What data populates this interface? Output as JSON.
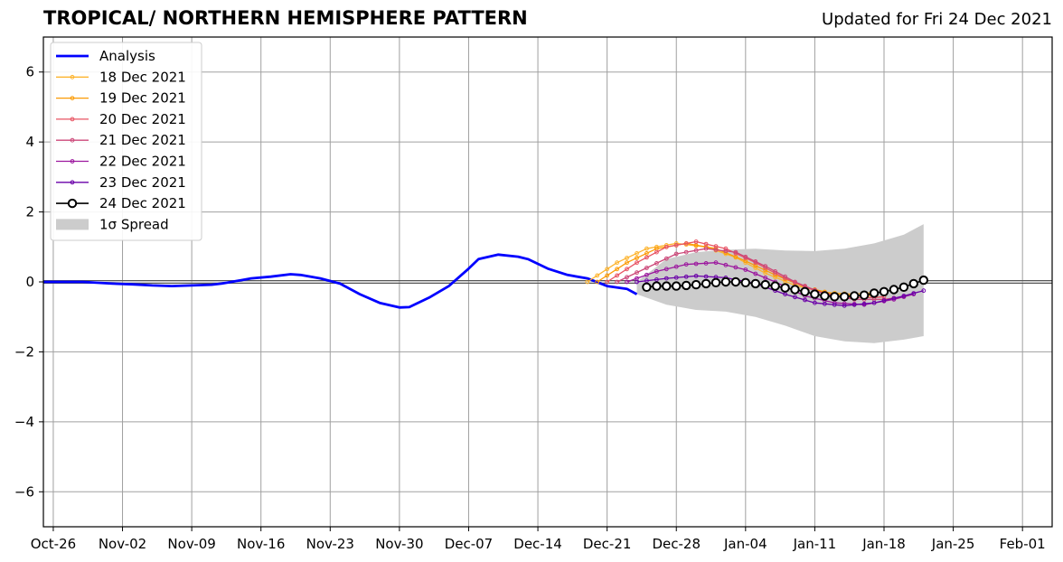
{
  "chart_data": {
    "type": "line",
    "title": "TROPICAL/ NORTHERN HEMISPHERE PATTERN",
    "subtitle": "Updated for Fri 24 Dec 2021",
    "xlabel": "",
    "ylabel": "",
    "x_start": "2021-10-25",
    "x_end": "2022-02-04",
    "ylim": [
      -7,
      7
    ],
    "yticks": [
      -6,
      -4,
      -2,
      0,
      2,
      4,
      6
    ],
    "ytick_labels": [
      "−6",
      "−4",
      "−2",
      "0",
      "2",
      "4",
      "6"
    ],
    "xticks": [
      "2021-10-26",
      "2021-11-02",
      "2021-11-09",
      "2021-11-16",
      "2021-11-23",
      "2021-11-30",
      "2021-12-07",
      "2021-12-14",
      "2021-12-21",
      "2021-12-28",
      "2022-01-04",
      "2022-01-11",
      "2022-01-18",
      "2022-01-25",
      "2022-02-01"
    ],
    "xtick_labels": [
      "Oct-26",
      "Nov-02",
      "Nov-09",
      "Nov-16",
      "Nov-23",
      "Nov-30",
      "Dec-07",
      "Dec-14",
      "Dec-21",
      "Dec-28",
      "Jan-04",
      "Jan-11",
      "Jan-18",
      "Jan-25",
      "Feb-01"
    ],
    "grid": true,
    "legend_position": "top-left",
    "analysis": {
      "name": "Analysis",
      "color": "#0000ff",
      "x": [
        "2021-10-25",
        "2021-10-29",
        "2021-11-01",
        "2021-11-03",
        "2021-11-05",
        "2021-11-07",
        "2021-11-09",
        "2021-11-11",
        "2021-11-12",
        "2021-11-14",
        "2021-11-15",
        "2021-11-17",
        "2021-11-19",
        "2021-11-20",
        "2021-11-22",
        "2021-11-24",
        "2021-11-26",
        "2021-11-28",
        "2021-11-30",
        "2021-12-01",
        "2021-12-03",
        "2021-12-05",
        "2021-12-07",
        "2021-12-08",
        "2021-12-10",
        "2021-12-12",
        "2021-12-13",
        "2021-12-15",
        "2021-12-17",
        "2021-12-19",
        "2021-12-21",
        "2021-12-23",
        "2021-12-24"
      ],
      "y": [
        0,
        0,
        -0.05,
        -0.07,
        -0.1,
        -0.12,
        -0.1,
        -0.08,
        -0.05,
        0.05,
        0.1,
        0.15,
        0.22,
        0.2,
        0.1,
        -0.05,
        -0.35,
        -0.6,
        -0.73,
        -0.72,
        -0.45,
        -0.12,
        0.38,
        0.65,
        0.78,
        0.72,
        0.65,
        0.38,
        0.2,
        0.1,
        -0.12,
        -0.2,
        -0.35
      ]
    },
    "series": [
      {
        "name": "18 Dec 2021",
        "color": "#fdb42f",
        "x": [
          "2021-12-19",
          "2021-12-22",
          "2021-12-25",
          "2021-12-28",
          "2021-12-31",
          "2022-01-03",
          "2022-01-06",
          "2022-01-09",
          "2022-01-12",
          "2022-01-15",
          "2022-01-17"
        ],
        "y": [
          0,
          0.55,
          0.95,
          1.1,
          1.0,
          0.7,
          0.25,
          -0.1,
          -0.3,
          -0.35,
          -0.3
        ]
      },
      {
        "name": "19 Dec 2021",
        "color": "#fb9b06",
        "x": [
          "2021-12-20",
          "2021-12-23",
          "2021-12-26",
          "2021-12-29",
          "2022-01-01",
          "2022-01-04",
          "2022-01-07",
          "2022-01-10",
          "2022-01-13",
          "2022-01-16",
          "2022-01-17"
        ],
        "y": [
          0,
          0.55,
          0.95,
          1.1,
          0.95,
          0.6,
          0.2,
          -0.15,
          -0.35,
          -0.4,
          -0.38
        ]
      },
      {
        "name": "20 Dec 2021",
        "color": "#e85362",
        "x": [
          "2021-12-21",
          "2021-12-24",
          "2021-12-27",
          "2021-12-30",
          "2022-01-02",
          "2022-01-05",
          "2022-01-08",
          "2022-01-11",
          "2022-01-14",
          "2022-01-17",
          "2022-01-18"
        ],
        "y": [
          0,
          0.55,
          1.0,
          1.15,
          0.95,
          0.55,
          0.1,
          -0.25,
          -0.45,
          -0.45,
          -0.42
        ]
      },
      {
        "name": "21 Dec 2021",
        "color": "#cc4778",
        "x": [
          "2021-12-22",
          "2021-12-25",
          "2021-12-28",
          "2021-12-31",
          "2022-01-03",
          "2022-01-06",
          "2022-01-09",
          "2022-01-12",
          "2022-01-15",
          "2022-01-18",
          "2022-01-20"
        ],
        "y": [
          0,
          0.4,
          0.8,
          0.95,
          0.85,
          0.45,
          0.0,
          -0.35,
          -0.5,
          -0.5,
          -0.42
        ]
      },
      {
        "name": "22 Dec 2021",
        "color": "#9c179e",
        "x": [
          "2021-12-23",
          "2021-12-26",
          "2021-12-29",
          "2022-01-01",
          "2022-01-04",
          "2022-01-07",
          "2022-01-10",
          "2022-01-13",
          "2022-01-16",
          "2022-01-19",
          "2022-01-21"
        ],
        "y": [
          0,
          0.3,
          0.5,
          0.55,
          0.35,
          0.0,
          -0.4,
          -0.6,
          -0.65,
          -0.5,
          -0.35
        ]
      },
      {
        "name": "23 Dec 2021",
        "color": "#6a00a8",
        "x": [
          "2021-12-24",
          "2021-12-27",
          "2021-12-30",
          "2022-01-02",
          "2022-01-05",
          "2022-01-08",
          "2022-01-11",
          "2022-01-14",
          "2022-01-17",
          "2022-01-20",
          "2022-01-22"
        ],
        "y": [
          0,
          0.1,
          0.17,
          0.12,
          -0.05,
          -0.35,
          -0.6,
          -0.68,
          -0.6,
          -0.4,
          -0.25
        ]
      },
      {
        "name": "24 Dec 2021",
        "color": "#000000",
        "x": [
          "2021-12-25",
          "2021-12-26",
          "2021-12-27",
          "2021-12-28",
          "2021-12-29",
          "2021-12-30",
          "2021-12-31",
          "2022-01-01",
          "2022-01-02",
          "2022-01-03",
          "2022-01-04",
          "2022-01-05",
          "2022-01-06",
          "2022-01-07",
          "2022-01-08",
          "2022-01-09",
          "2022-01-10",
          "2022-01-11",
          "2022-01-12",
          "2022-01-13",
          "2022-01-14",
          "2022-01-15",
          "2022-01-16",
          "2022-01-17",
          "2022-01-18",
          "2022-01-19",
          "2022-01-20",
          "2022-01-21",
          "2022-01-22"
        ],
        "y": [
          -0.15,
          -0.12,
          -0.12,
          -0.12,
          -0.1,
          -0.08,
          -0.05,
          -0.02,
          0,
          0,
          -0.02,
          -0.05,
          -0.08,
          -0.12,
          -0.17,
          -0.22,
          -0.28,
          -0.35,
          -0.4,
          -0.42,
          -0.42,
          -0.4,
          -0.38,
          -0.32,
          -0.28,
          -0.22,
          -0.15,
          -0.05,
          0.05
        ]
      }
    ],
    "spread": {
      "name": "1σ Spread",
      "color": "#cccccc",
      "x": [
        "2021-12-24",
        "2021-12-27",
        "2021-12-30",
        "2022-01-02",
        "2022-01-05",
        "2022-01-08",
        "2022-01-11",
        "2022-01-14",
        "2022-01-17",
        "2022-01-20",
        "2022-01-22"
      ],
      "upper": [
        0,
        0.65,
        0.85,
        0.92,
        0.95,
        0.9,
        0.88,
        0.95,
        1.1,
        1.35,
        1.65
      ],
      "lower": [
        -0.35,
        -0.65,
        -0.8,
        -0.85,
        -1.0,
        -1.25,
        -1.55,
        -1.7,
        -1.75,
        -1.65,
        -1.55
      ]
    },
    "legend": [
      "Analysis",
      "18 Dec 2021",
      "19 Dec 2021",
      "20 Dec 2021",
      "21 Dec 2021",
      "22 Dec 2021",
      "23 Dec 2021",
      "24 Dec 2021",
      "1σ Spread"
    ]
  }
}
